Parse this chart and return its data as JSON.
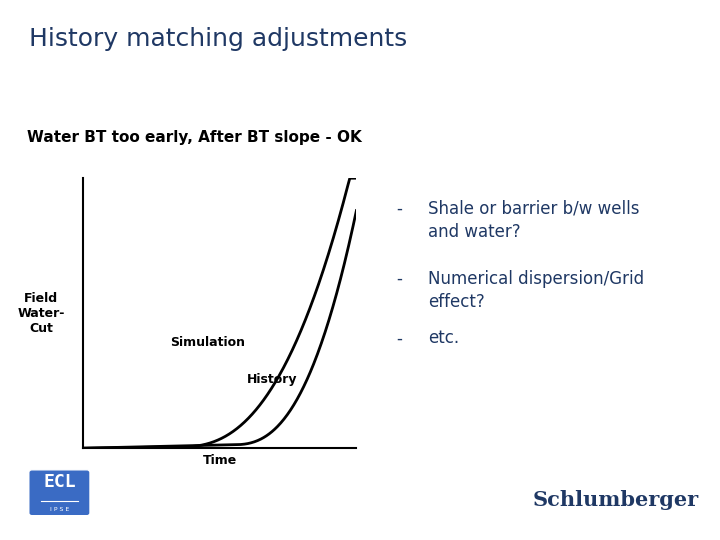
{
  "title": "History matching adjustments",
  "title_color": "#1F3864",
  "title_fontsize": 18,
  "subtitle": "Water BT too early, After BT slope - OK",
  "subtitle_fontsize": 11,
  "ylabel": "Field\nWater-\nCut",
  "xlabel": "Time",
  "simulation_label": "Simulation",
  "history_label": "History",
  "bullet_points": [
    "Shale or barrier b/w wells\nand water?",
    "Numerical dispersion/Grid\neffect?",
    "etc."
  ],
  "bullet_color": "#1F3864",
  "bullet_fontsize": 12,
  "line_color": "#000000",
  "background_color": "#ffffff",
  "schlumberger_color": "#1F3864",
  "ecl_bg_color": "#3A6BC4",
  "axis_label_fontsize": 9,
  "axis_label_fontweight": "bold"
}
